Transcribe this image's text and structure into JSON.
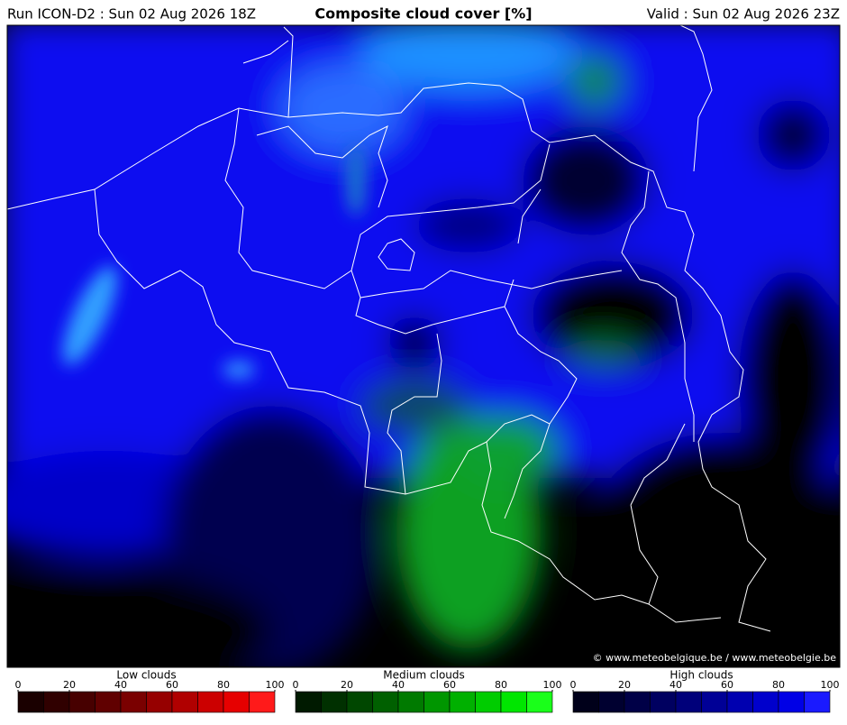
{
  "header": {
    "run": "Run ICON-D2 : Sun 02 Aug 2026 18Z",
    "title": "Composite cloud cover [%]",
    "valid": "Valid : Sun 02 Aug 2026 23Z"
  },
  "map": {
    "credit": "© www.meteobelgique.be / www.meteobelgie.be"
  },
  "legends": [
    {
      "title": "Low clouds",
      "ticks": [
        0,
        20,
        40,
        60,
        80,
        100
      ],
      "colors": [
        "#1a0000",
        "#300000",
        "#470000",
        "#600000",
        "#7a0000",
        "#960000",
        "#b00000",
        "#cc0000",
        "#e60000",
        "#ff1a1a"
      ]
    },
    {
      "title": "Medium clouds",
      "ticks": [
        0,
        20,
        40,
        60,
        80,
        100
      ],
      "colors": [
        "#001a00",
        "#003000",
        "#004700",
        "#006000",
        "#007a00",
        "#009600",
        "#00b000",
        "#00cc00",
        "#00e600",
        "#1aff1a"
      ]
    },
    {
      "title": "High clouds",
      "ticks": [
        0,
        20,
        40,
        60,
        80,
        100
      ],
      "colors": [
        "#00001a",
        "#000030",
        "#000047",
        "#000060",
        "#00007a",
        "#000096",
        "#0000b0",
        "#0000cc",
        "#0000e6",
        "#1a1aff"
      ]
    }
  ]
}
